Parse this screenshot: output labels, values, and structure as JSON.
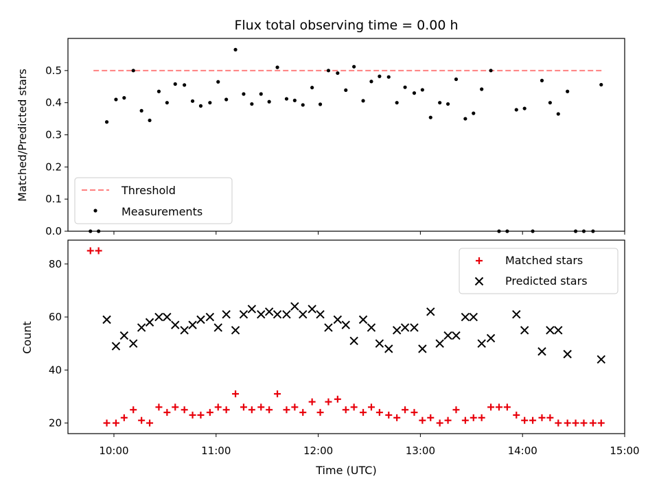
{
  "colors": {
    "threshold": "#ff7f7f",
    "measurements": "#000000",
    "matched": "#e8000b",
    "predicted": "#000000"
  },
  "chart_data": [
    {
      "type": "scatter",
      "title": "Flux total observing time = 0.00 h",
      "ylabel": "Matched/Predicted stars",
      "xlim": [
        9.55,
        15.0
      ],
      "ylim": [
        0,
        0.6
      ],
      "yticks": [
        0.0,
        0.1,
        0.2,
        0.3,
        0.4,
        0.5
      ],
      "ytick_labels": [
        "0.0",
        "0.1",
        "0.2",
        "0.3",
        "0.4",
        "0.5"
      ],
      "threshold": {
        "name": "Threshold",
        "y": 0.5,
        "x_range": [
          9.8,
          14.8
        ]
      },
      "legend": {
        "placement": "lower-left",
        "entries": [
          "Threshold",
          "Measurements"
        ]
      },
      "series": [
        {
          "name": "Measurements",
          "marker": "dot",
          "x": [
            9.77,
            9.85,
            9.93,
            10.02,
            10.1,
            10.19,
            10.27,
            10.35,
            10.44,
            10.52,
            10.6,
            10.69,
            10.77,
            10.85,
            10.94,
            11.02,
            11.1,
            11.19,
            11.27,
            11.35,
            11.44,
            11.52,
            11.6,
            11.69,
            11.77,
            11.85,
            11.94,
            12.02,
            12.1,
            12.19,
            12.27,
            12.35,
            12.44,
            12.52,
            12.6,
            12.69,
            12.77,
            12.85,
            12.94,
            13.02,
            13.1,
            13.19,
            13.27,
            13.35,
            13.44,
            13.52,
            13.6,
            13.69,
            13.77,
            13.85,
            13.94,
            14.02,
            14.1,
            14.19,
            14.27,
            14.35,
            14.44,
            14.52,
            14.6,
            14.69,
            14.77
          ],
          "y": [
            0.0,
            0.0,
            0.34,
            0.41,
            0.415,
            0.5,
            0.375,
            0.345,
            0.435,
            0.4,
            0.458,
            0.455,
            0.405,
            0.39,
            0.4,
            0.465,
            0.41,
            0.565,
            0.427,
            0.396,
            0.427,
            0.403,
            0.51,
            0.412,
            0.407,
            0.393,
            0.447,
            0.395,
            0.5,
            0.492,
            0.439,
            0.512,
            0.406,
            0.466,
            0.482,
            0.48,
            0.4,
            0.448,
            0.43,
            0.44,
            0.354,
            0.4,
            0.396,
            0.473,
            0.35,
            0.367,
            0.442,
            0.5,
            0.0,
            0.0,
            0.378,
            0.382,
            0.0,
            0.469,
            0.4,
            0.365,
            0.435,
            0.0,
            0.0,
            0.0,
            0.456
          ]
        }
      ]
    },
    {
      "type": "scatter",
      "xlabel": "Time (UTC)",
      "ylabel": "Count",
      "xlim": [
        9.55,
        15.0
      ],
      "ylim": [
        16,
        89
      ],
      "yticks": [
        20,
        40,
        60,
        80
      ],
      "ytick_labels": [
        "20",
        "40",
        "60",
        "80"
      ],
      "xticks": [
        10,
        11,
        12,
        13,
        14,
        15
      ],
      "xtick_labels": [
        "10:00",
        "11:00",
        "12:00",
        "13:00",
        "14:00",
        "15:00"
      ],
      "legend": {
        "placement": "upper-right",
        "entries": [
          "Matched stars",
          "Predicted stars"
        ]
      },
      "series": [
        {
          "name": "Matched stars",
          "marker": "plus",
          "x": [
            9.77,
            9.85,
            9.93,
            10.02,
            10.1,
            10.19,
            10.27,
            10.35,
            10.44,
            10.52,
            10.6,
            10.69,
            10.77,
            10.85,
            10.94,
            11.02,
            11.1,
            11.19,
            11.27,
            11.35,
            11.44,
            11.52,
            11.6,
            11.69,
            11.77,
            11.85,
            11.94,
            12.02,
            12.1,
            12.19,
            12.27,
            12.35,
            12.44,
            12.52,
            12.6,
            12.69,
            12.77,
            12.85,
            12.94,
            13.02,
            13.1,
            13.19,
            13.27,
            13.35,
            13.44,
            13.52,
            13.6,
            13.69,
            13.77,
            13.85,
            13.94,
            14.02,
            14.1,
            14.19,
            14.27,
            14.35,
            14.44,
            14.52,
            14.6,
            14.69,
            14.77
          ],
          "y": [
            85,
            85,
            20,
            20,
            22,
            25,
            21,
            20,
            26,
            24,
            26,
            25,
            23,
            23,
            24,
            26,
            25,
            31,
            26,
            25,
            26,
            25,
            31,
            25,
            26,
            24,
            28,
            24,
            28,
            29,
            25,
            26,
            24,
            26,
            24,
            23,
            22,
            25,
            24,
            21,
            22,
            20,
            21,
            25,
            21,
            22,
            22,
            26,
            26,
            26,
            23,
            21,
            21,
            22,
            22,
            20,
            20,
            20,
            20,
            20,
            20
          ]
        },
        {
          "name": "Predicted stars",
          "marker": "x",
          "x": [
            9.93,
            10.02,
            10.1,
            10.19,
            10.27,
            10.35,
            10.44,
            10.52,
            10.6,
            10.69,
            10.77,
            10.85,
            10.94,
            11.02,
            11.1,
            11.19,
            11.27,
            11.35,
            11.44,
            11.52,
            11.6,
            11.69,
            11.77,
            11.85,
            11.94,
            12.02,
            12.1,
            12.19,
            12.27,
            12.35,
            12.44,
            12.52,
            12.6,
            12.69,
            12.77,
            12.85,
            12.94,
            13.02,
            13.1,
            13.19,
            13.27,
            13.35,
            13.44,
            13.52,
            13.6,
            13.69,
            13.94,
            14.02,
            14.19,
            14.27,
            14.35,
            14.44,
            14.77
          ],
          "y": [
            59,
            49,
            53,
            50,
            56,
            58,
            60,
            60,
            57,
            55,
            57,
            59,
            60,
            56,
            61,
            55,
            61,
            63,
            61,
            62,
            61,
            61,
            64,
            61,
            63,
            61,
            56,
            59,
            57,
            51,
            59,
            56,
            50,
            48,
            55,
            56,
            56,
            48,
            62,
            50,
            53,
            53,
            60,
            60,
            50,
            52,
            61,
            55,
            47,
            55,
            55,
            46,
            44
          ]
        }
      ]
    }
  ]
}
